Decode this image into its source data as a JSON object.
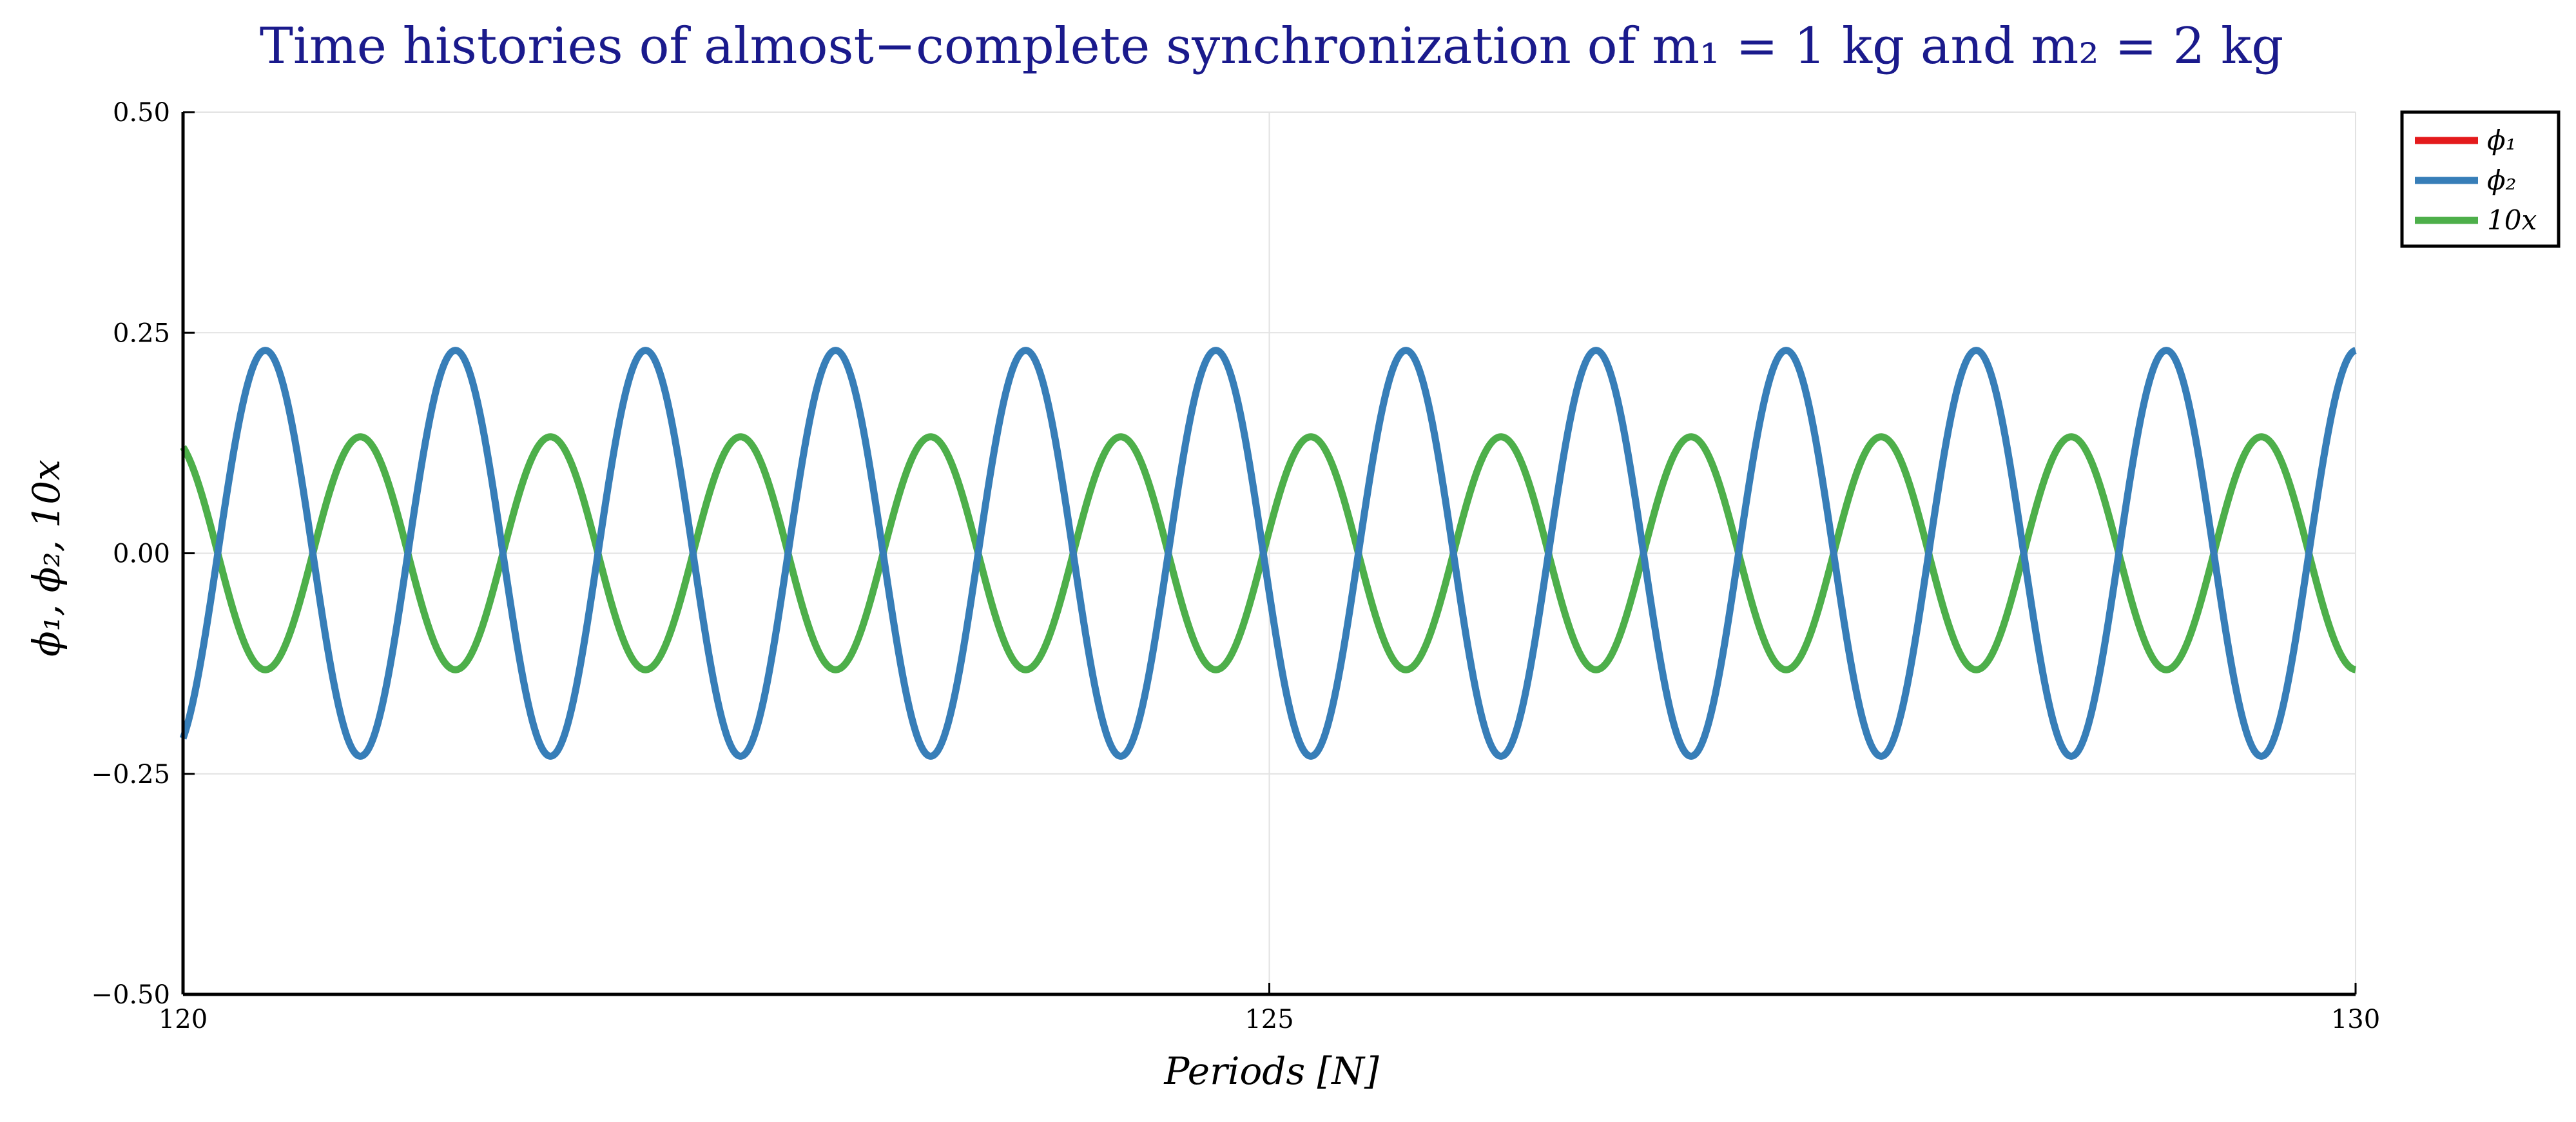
{
  "chart_data": {
    "type": "line",
    "title": "Time histories of almost−complete synchronization of m₁ = 1 kg and m₂ = 2 kg",
    "xlabel": "Periods  [N]",
    "ylabel": "ϕ₁,  ϕ₂,  10x",
    "xlim": [
      120,
      130
    ],
    "ylim": [
      -0.5,
      0.5
    ],
    "x_ticks": [
      120,
      125,
      130
    ],
    "x_tick_labels": [
      "120",
      "125",
      "130"
    ],
    "y_ticks": [
      -0.5,
      -0.25,
      0.0,
      0.25,
      0.5
    ],
    "y_tick_labels": [
      "−0.50",
      "−0.25",
      "0.00",
      "0.25",
      "0.50"
    ],
    "grid": true,
    "legend_position": "outside-top-right",
    "series": [
      {
        "name": "ϕ₁",
        "color": "#e41a1c",
        "amplitude": 0.23,
        "period": 0.875,
        "phase_x": 120.16,
        "visible_curve": false,
        "note_values_equal_to": "ϕ₂"
      },
      {
        "name": "ϕ₂",
        "color": "#377eb8",
        "amplitude": 0.23,
        "period": 0.875,
        "phase_x": 120.16
      },
      {
        "name": "10x",
        "color": "#4daf4a",
        "amplitude": 0.132,
        "period": 0.875,
        "phase_x": 120.16,
        "inverted": true
      }
    ]
  }
}
